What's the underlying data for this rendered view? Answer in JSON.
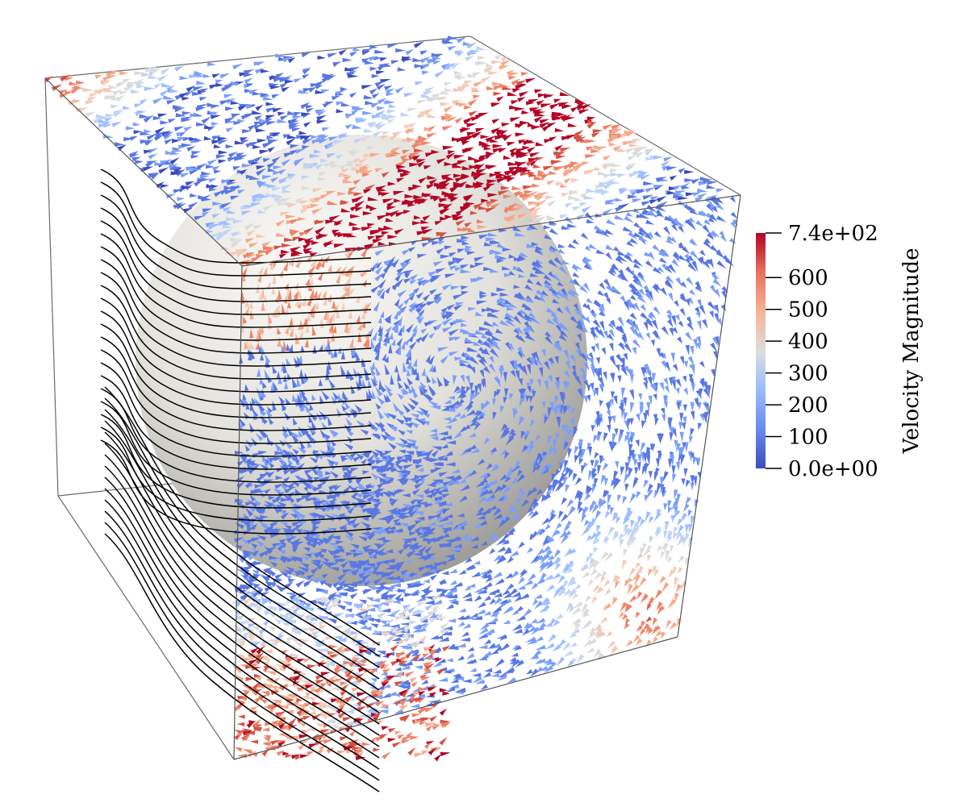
{
  "legend": {
    "title": "Velocity Magnitude",
    "tick_labels": [
      "7.4e+02",
      "600",
      "500",
      "400",
      "300",
      "200",
      "100",
      "0.0e+00"
    ],
    "tick_values": [
      740,
      600,
      500,
      400,
      300,
      200,
      100,
      0
    ],
    "range": [
      0,
      740
    ],
    "colors": [
      "#3b4cc0",
      "#7b9ff9",
      "#c0d4f5",
      "#dddddd",
      "#f2cbb7",
      "#ee8468",
      "#b40426"
    ]
  },
  "scene": {
    "sphere_color": "#e8e6e2",
    "streamline_color": "#000000",
    "box_edge_color": "#555555"
  }
}
